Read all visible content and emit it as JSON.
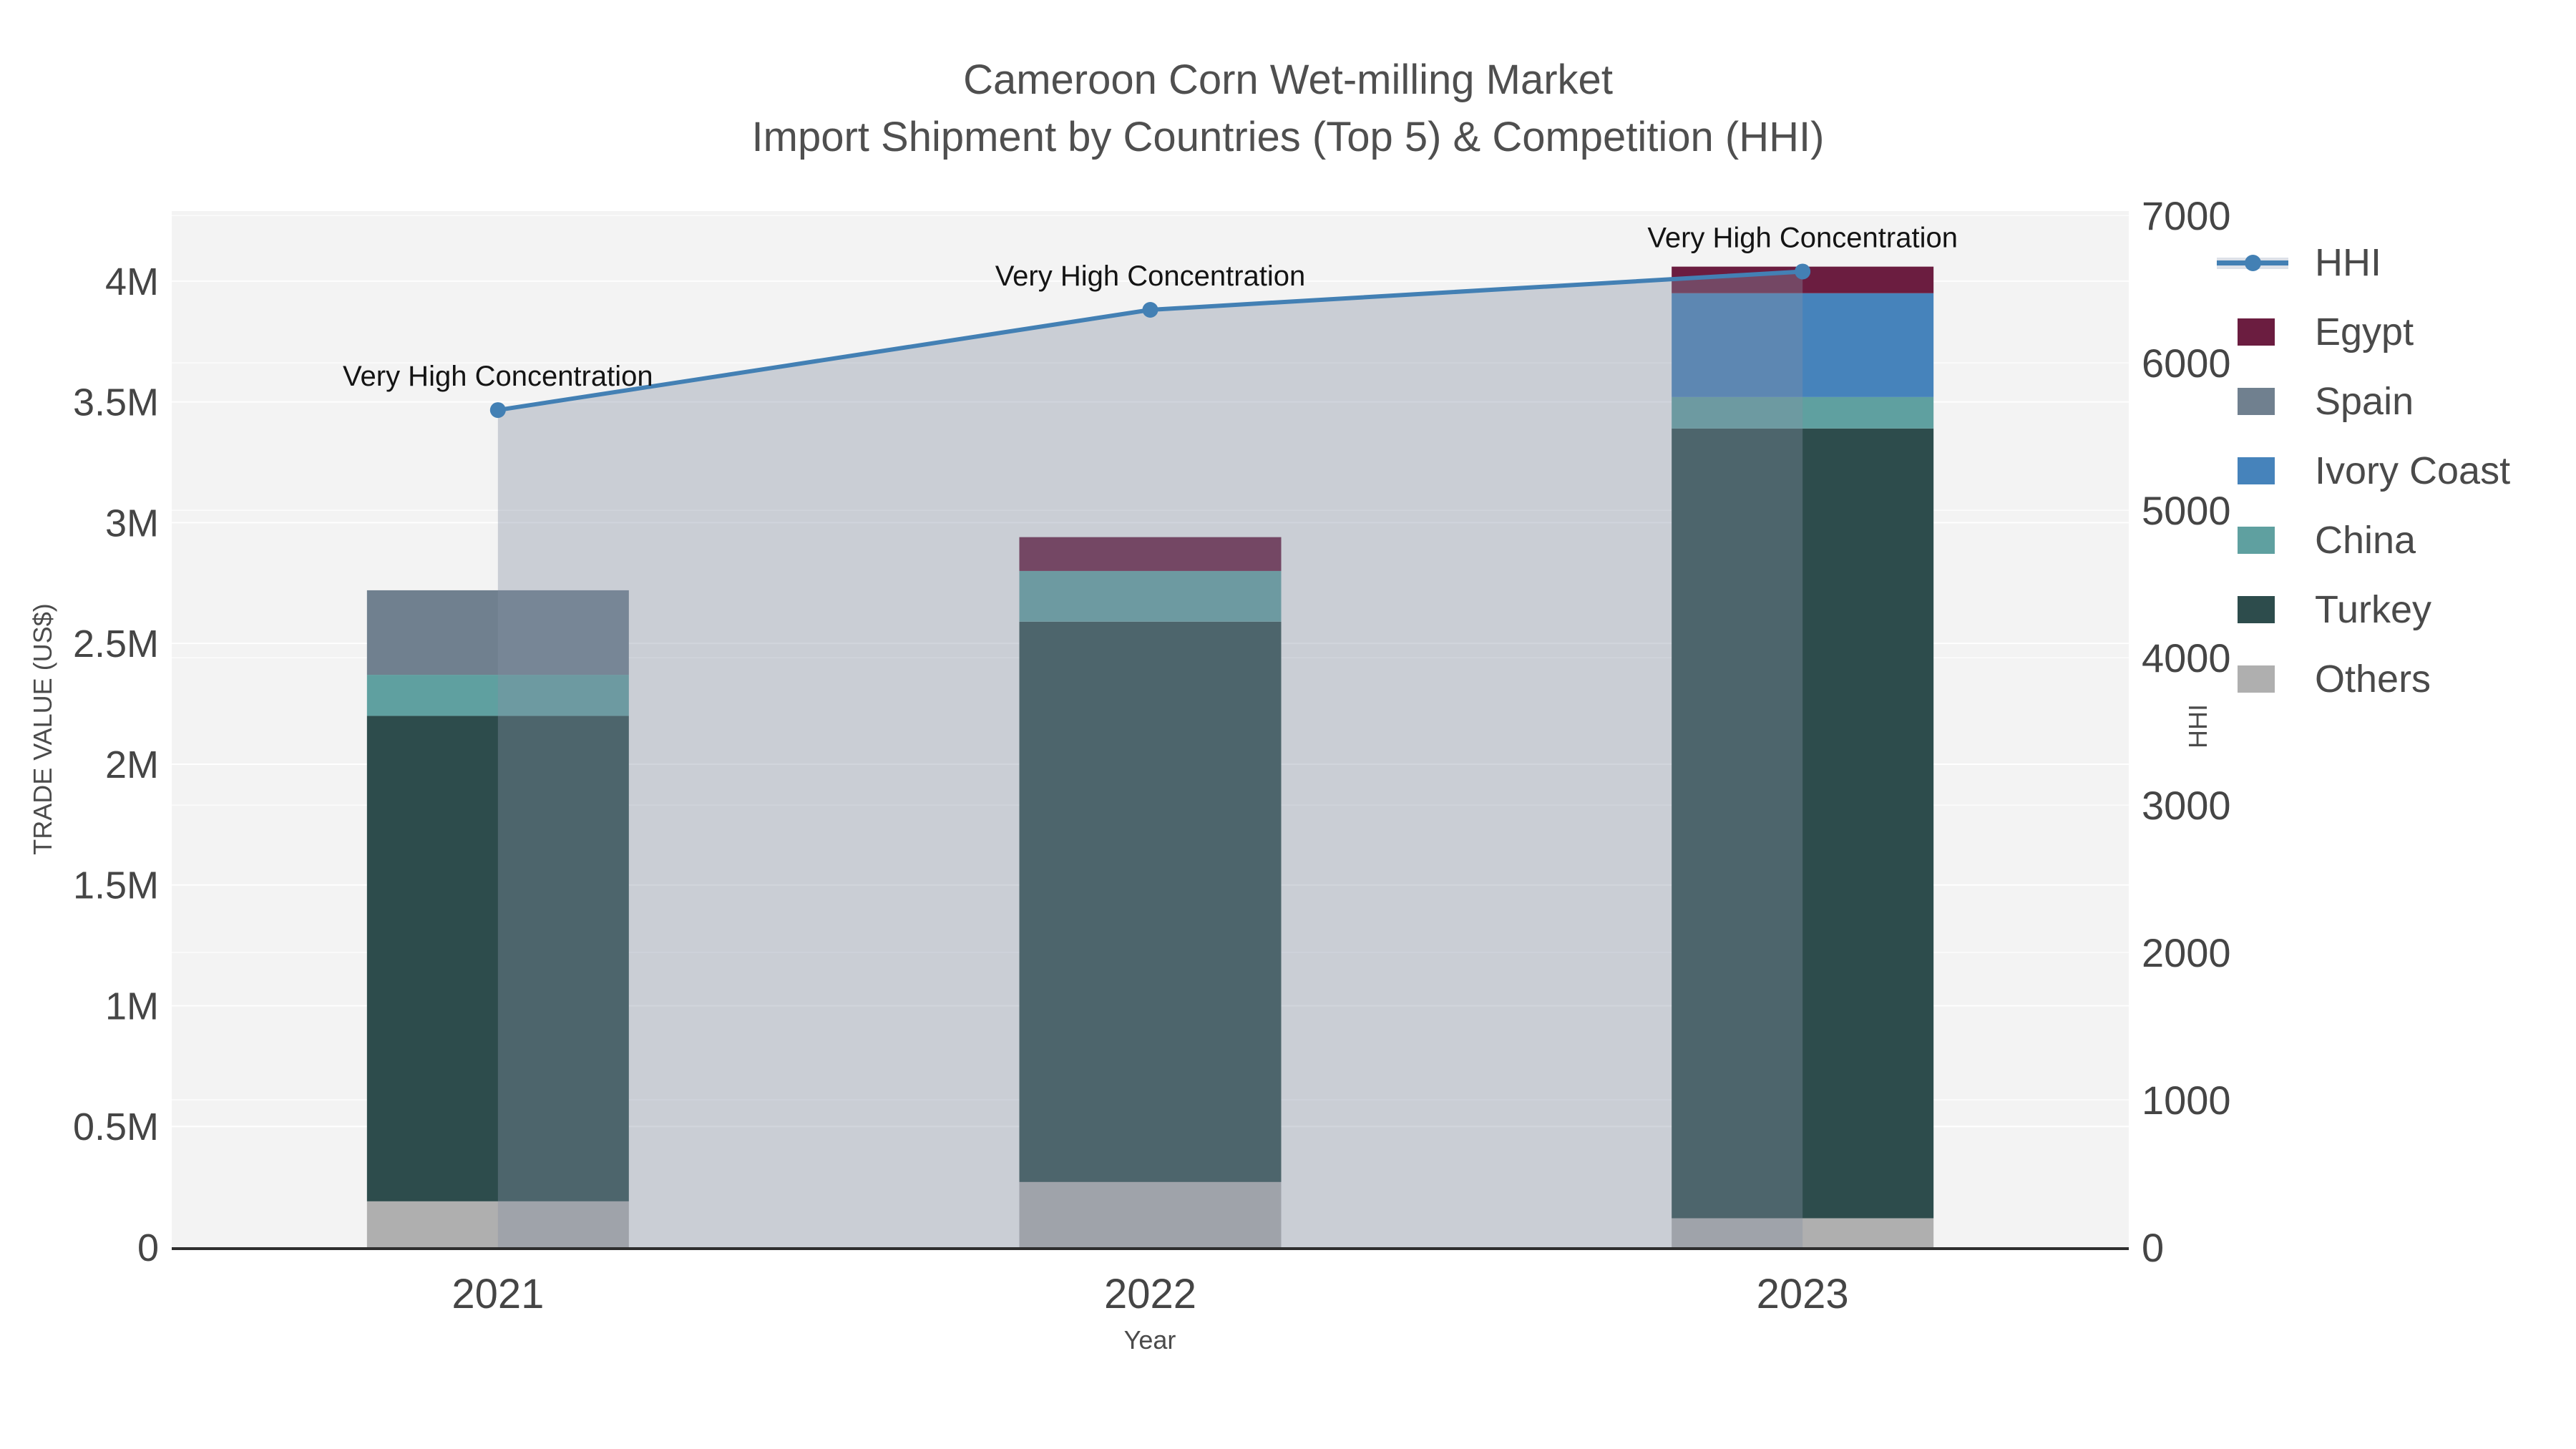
{
  "title": {
    "line1": "Cameroon Corn Wet-milling Market",
    "line2": "Import Shipment by Countries (Top 5) & Competition (HHI)"
  },
  "chart_data": {
    "type": "bar",
    "subtype": "stacked-bar-with-line-dual-axis",
    "categories": [
      "2021",
      "2022",
      "2023"
    ],
    "bar_value_unit": "US$ millions",
    "series": [
      {
        "name": "Others",
        "color": "#AFAFAF",
        "values": [
          0.19,
          0.27,
          0.12
        ]
      },
      {
        "name": "Turkey",
        "color": "#2D4C4C",
        "values": [
          2.01,
          2.32,
          3.27
        ]
      },
      {
        "name": "China",
        "color": "#5FA0A0",
        "values": [
          0.17,
          0.21,
          0.13
        ]
      },
      {
        "name": "Ivory Coast",
        "color": "#4683BB",
        "values": [
          0.0,
          0.0,
          0.43
        ]
      },
      {
        "name": "Spain",
        "color": "#70808F",
        "values": [
          0.35,
          0.0,
          0.0
        ]
      },
      {
        "name": "Egypt",
        "color": "#6B1D40",
        "values": [
          0.0,
          0.14,
          0.11
        ]
      }
    ],
    "bar_totals": [
      2.72,
      2.94,
      4.06
    ],
    "hhi": {
      "name": "HHI",
      "line_color": "#4380B4",
      "area_fill": "rgba(133,145,163,0.37)",
      "values": [
        5680,
        6360,
        6620
      ]
    },
    "annotations": [
      "Very High Concentration",
      "Very High Concentration",
      "Very High Concentration"
    ],
    "x_axis": {
      "title": "Year",
      "tick_labels": [
        "2021",
        "2022",
        "2023"
      ]
    },
    "y_left": {
      "title": "TRADE VALUE (US$)",
      "tick_values": [
        0,
        0.5,
        1,
        1.5,
        2,
        2.5,
        3,
        3.5,
        4
      ],
      "tick_labels": [
        "0",
        "0.5M",
        "1M",
        "1.5M",
        "2M",
        "2.5M",
        "3M",
        "3.5M",
        "4M"
      ],
      "range_max": 4.29
    },
    "y_right": {
      "title": "HHI",
      "tick_values": [
        0,
        1000,
        2000,
        3000,
        4000,
        5000,
        6000,
        7000
      ],
      "tick_labels": [
        "0",
        "1000",
        "2000",
        "3000",
        "4000",
        "5000",
        "6000",
        "7000"
      ],
      "range_max": 7030
    },
    "legend": [
      {
        "label": "HHI",
        "kind": "line",
        "color": "#4380B4"
      },
      {
        "label": "Egypt",
        "kind": "box",
        "color": "#6B1D40"
      },
      {
        "label": "Spain",
        "kind": "box",
        "color": "#70808F"
      },
      {
        "label": "Ivory Coast",
        "kind": "box",
        "color": "#4683BB"
      },
      {
        "label": "China",
        "kind": "box",
        "color": "#5FA0A0"
      },
      {
        "label": "Turkey",
        "kind": "box",
        "color": "#2D4C4C"
      },
      {
        "label": "Others",
        "kind": "box",
        "color": "#AFAFAF"
      }
    ],
    "style": {
      "plot_bg": "#F3F3F3",
      "grid_color": "#FFFFFF",
      "axis_line_color": "#2E2E2E",
      "text_color": "#454545"
    }
  }
}
